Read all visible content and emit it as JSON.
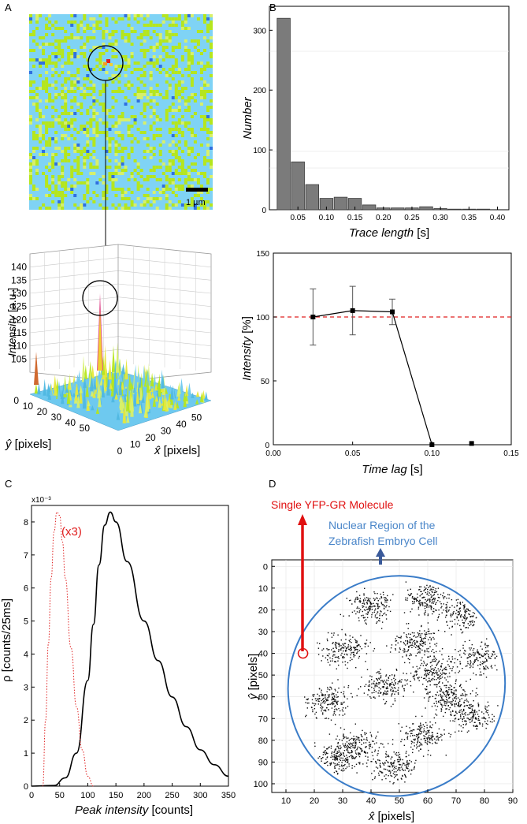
{
  "panels": {
    "A": {
      "letter": "A",
      "scale_bar_label": "1 µm",
      "surface": {
        "z_ticks": [
          "105",
          "110",
          "115",
          "120",
          "125",
          "130",
          "135",
          "140"
        ],
        "z_label_italic": "Intensity",
        "z_label_unit": " [a.u.]",
        "y_ticks": [
          "0",
          "10",
          "20",
          "30",
          "40",
          "50"
        ],
        "y_label_unit": " [pixels]",
        "x_ticks": [
          "0",
          "10",
          "20",
          "30",
          "40",
          "50"
        ],
        "x_label_unit": " [pixels]",
        "y_hat_symbol": "ŷ",
        "x_hat_symbol": "x̂"
      },
      "colors": {
        "background": "#7fd3f5",
        "speckle_a": "#b5e61d",
        "speckle_b": "#d7f06a",
        "speckle_c": "#2f6fe0",
        "peak": "#e02020"
      }
    },
    "B": {
      "letter": "B",
      "top_ylabel": "Number",
      "top_xlabel_italic": "Trace length",
      "top_xlabel_unit": " [s]",
      "bottom_ylabel_italic": "Intensity",
      "bottom_ylabel_unit": " [%]",
      "bottom_xlabel_italic": "Time lag",
      "bottom_xlabel_unit": " [s]"
    },
    "C": {
      "letter": "C",
      "multiplier": "x10⁻³",
      "ylabel": "ρ [counts/25ms]",
      "xlabel_italic": "Peak intensity",
      "xlabel_unit": " [counts]",
      "annotation": "(x3)"
    },
    "D": {
      "letter": "D",
      "molecule_label": "Single YFP-GR Molecule",
      "region_label_line1": "Nuclear Region of the",
      "region_label_line2": "Zebrafish Embryo Cell",
      "ylabel_unit": " [pixels]",
      "xlabel_unit": " [pixels]",
      "y_hat_symbol": "ŷ",
      "x_hat_symbol": "x̂",
      "colors": {
        "molecule": "#e01010",
        "region": "#3a7cc8",
        "arrow": "#3a5a9a"
      }
    }
  },
  "chart_data": [
    {
      "type": "bar",
      "panel": "B-top",
      "xlabel": "Trace length [s]",
      "ylabel": "Number",
      "x": [
        0.025,
        0.05,
        0.075,
        0.1,
        0.125,
        0.15,
        0.175,
        0.2,
        0.225,
        0.25,
        0.275,
        0.3,
        0.325,
        0.35,
        0.375,
        0.4
      ],
      "values": [
        320,
        80,
        42,
        19,
        21,
        19,
        8,
        3,
        3,
        3,
        5,
        2,
        1,
        1,
        1,
        0
      ],
      "xlim": [
        0,
        0.42
      ],
      "ylim": [
        0,
        340
      ],
      "x_ticks": [
        0.05,
        0.1,
        0.15,
        0.2,
        0.25,
        0.3,
        0.35,
        0.4
      ],
      "x_tick_labels": [
        "0.05",
        "0.10",
        "0.15",
        "0.20",
        "0.25",
        "0.30",
        "0.35",
        "0.40"
      ],
      "y_ticks": [
        0,
        100,
        200,
        300
      ],
      "y_tick_labels": [
        "0",
        "100",
        "200",
        "300"
      ],
      "color": "#7b7b7b"
    },
    {
      "type": "line",
      "panel": "B-bottom",
      "xlabel": "Time lag [s]",
      "ylabel": "Intensity [%]",
      "x": [
        0.025,
        0.05,
        0.075,
        0.1,
        0.125
      ],
      "y": [
        100,
        105,
        104,
        0,
        1
      ],
      "yerr": [
        22,
        19,
        10,
        0,
        0
      ],
      "connected_points": 4,
      "reference_line": 100,
      "xlim": [
        0,
        0.15
      ],
      "ylim": [
        0,
        150
      ],
      "x_ticks": [
        0.0,
        0.05,
        0.1,
        0.15
      ],
      "x_tick_labels": [
        "0.00",
        "0.05",
        "0.10",
        "0.15"
      ],
      "y_ticks": [
        0,
        50,
        100,
        150
      ],
      "y_tick_labels": [
        "0",
        "50",
        "100",
        "150"
      ]
    },
    {
      "type": "line",
      "panel": "C",
      "xlabel": "Peak intensity [counts]",
      "ylabel": "ρ [counts/25ms]",
      "series": [
        {
          "name": "",
          "style": "solid",
          "color": "#000000",
          "x": [
            0,
            40,
            60,
            80,
            100,
            110,
            120,
            130,
            140,
            150,
            170,
            200,
            225,
            250,
            275,
            300,
            325,
            350
          ],
          "y": [
            0,
            0.02,
            0.25,
            1.0,
            3.2,
            4.9,
            6.7,
            7.9,
            8.3,
            8.0,
            6.8,
            5.0,
            3.8,
            2.7,
            1.8,
            1.1,
            0.65,
            0.3
          ]
        },
        {
          "name": "",
          "style": "dotted",
          "color": "#e02020",
          "x": [
            20,
            25,
            30,
            35,
            40,
            45,
            50,
            55,
            60,
            70,
            80,
            90,
            100,
            110
          ],
          "y": [
            0,
            2.0,
            4.3,
            6.3,
            7.7,
            8.3,
            8.2,
            7.4,
            6.3,
            4.2,
            2.4,
            1.1,
            0.3,
            0
          ]
        }
      ],
      "xlim": [
        0,
        350
      ],
      "ylim": [
        0,
        8.5
      ],
      "x_ticks": [
        0,
        50,
        100,
        150,
        200,
        250,
        300,
        350
      ],
      "x_tick_labels": [
        "0",
        "50",
        "100",
        "150",
        "200",
        "250",
        "300",
        "350"
      ],
      "y_ticks": [
        0,
        1,
        2,
        3,
        4,
        5,
        6,
        7,
        8
      ],
      "y_tick_labels": [
        "0",
        "1",
        "2",
        "3",
        "4",
        "5",
        "6",
        "7",
        "8"
      ],
      "y_multiplier": "x10⁻³"
    },
    {
      "type": "scatter",
      "panel": "D",
      "xlabel": "x̂ [pixels]",
      "ylabel": "ŷ [pixels]",
      "xlim": [
        5,
        90
      ],
      "ylim": [
        104,
        -3
      ],
      "x_ticks": [
        10,
        20,
        30,
        40,
        50,
        60,
        70,
        80,
        90
      ],
      "x_tick_labels": [
        "10",
        "20",
        "30",
        "40",
        "50",
        "60",
        "70",
        "80",
        "90"
      ],
      "y_ticks": [
        0,
        10,
        20,
        30,
        40,
        50,
        60,
        70,
        80,
        90,
        100
      ],
      "y_tick_labels": [
        "0",
        "10",
        "20",
        "30",
        "40",
        "50",
        "60",
        "70",
        "80",
        "90",
        "100"
      ],
      "highlighted_point": [
        16,
        40
      ],
      "region_ellipse": {
        "cx": 49,
        "cy": 55,
        "rx": 38,
        "ry": 51,
        "rotation_deg": 30
      }
    }
  ]
}
